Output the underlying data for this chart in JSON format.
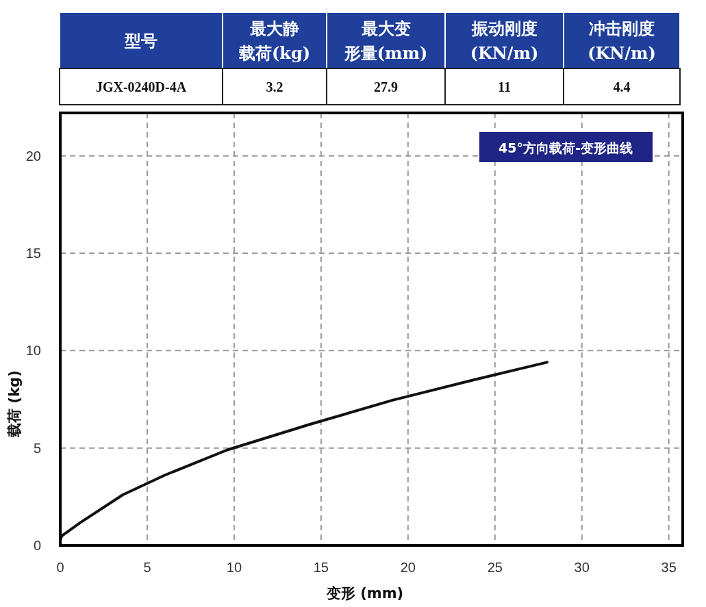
{
  "chart_data": [
    {
      "type": "other",
      "categories": [
        "型号",
        "最大静载荷(kg)",
        "最大变形量(mm)",
        "振动刚度(KN/m)",
        "冲击刚度(KN/m)"
      ],
      "cell_labels": [
        [
          "JGX-0240D-4A",
          "3.2",
          "27.9",
          "11",
          "4.4"
        ]
      ],
      "color": "#1f3f9a"
    },
    {
      "type": "line",
      "title": "45°方向载荷-变形曲线",
      "xlabel": "变形 (mm)",
      "ylabel": "载荷 (kg)",
      "xlim": [
        0,
        35.8
      ],
      "ylim": [
        0,
        22.2
      ],
      "xticks": [
        0,
        5,
        10,
        15,
        20,
        25,
        30,
        35
      ],
      "yticks": [
        0,
        5,
        10,
        15,
        20
      ],
      "grid": true,
      "line_style": "solid",
      "marker": "none",
      "series": [
        {
          "color": "#111111",
          "x": [
            0,
            0.1,
            1.2,
            3.6,
            6.0,
            9.6,
            14.3,
            19.1,
            23.8,
            28.0
          ],
          "values": [
            0.3,
            0.5,
            1.2,
            2.6,
            3.6,
            4.9,
            6.2,
            7.45,
            8.5,
            9.4
          ]
        }
      ]
    }
  ]
}
